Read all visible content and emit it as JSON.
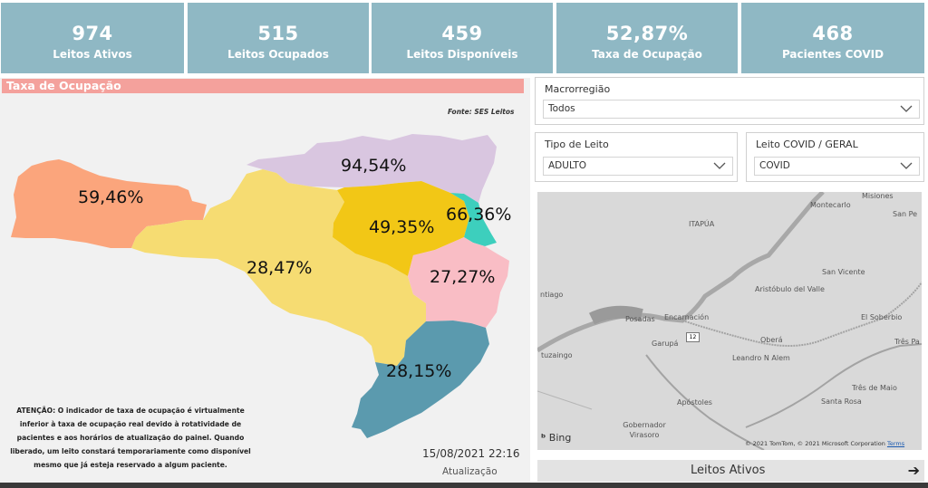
{
  "kpis": [
    {
      "value": "974",
      "label": "Leitos Ativos"
    },
    {
      "value": "515",
      "label": "Leitos Ocupados"
    },
    {
      "value": "459",
      "label": "Leitos Disponíveis"
    },
    {
      "value": "52,87%",
      "label": "Taxa de Ocupação"
    },
    {
      "value": "468",
      "label": "Pacientes COVID"
    }
  ],
  "map_panel": {
    "title": "Taxa de Ocupação",
    "source": "Fonte: SES Leitos",
    "regions": [
      {
        "pct": "59,46%",
        "color": "#fba57c"
      },
      {
        "pct": "94,54%",
        "color": "#d9c6e0"
      },
      {
        "pct": "28,47%",
        "color": "#f6dc72"
      },
      {
        "pct": "49,35%",
        "color": "#f2c716"
      },
      {
        "pct": "66,36%",
        "color": "#3dcfbd"
      },
      {
        "pct": "27,27%",
        "color": "#f9bdc5"
      },
      {
        "pct": "28,15%",
        "color": "#5b9aae"
      }
    ],
    "notice": "ATENÇÃO: O indicador de taxa de ocupação é virtualmente inferior à taxa de ocupação real devido à rotatividade de pacientes e aos horários de atualização do painel. Quando liberado, um leito constará temporariamente como disponível mesmo que já esteja reservado a algum paciente.",
    "timestamp": "15/08/2021 22:16",
    "updated_label": "Atualização"
  },
  "filters": {
    "macroregiao": {
      "label": "Macrorregião",
      "value": "Todos"
    },
    "tipo_leito": {
      "label": "Tipo de Leito",
      "value": "ADULTO"
    },
    "leito_covid": {
      "label": "Leito COVID / GERAL",
      "value": "COVID"
    }
  },
  "bing_map": {
    "labels": [
      "Misiones",
      "Montecarlo",
      "San Pe",
      "ITAPÚA",
      "San Vicente",
      "Aristóbulo del Valle",
      "ntiago",
      "Posadas",
      "Encarnación",
      "El Soberbio",
      "Garupá",
      "Oberá",
      "Três Pa",
      "Leandro N Alem",
      "tuzaingo",
      "Três de Maio",
      "Apóstoles",
      "Santa Rosa",
      "Gobernador Virasoro"
    ],
    "route_badge": "12",
    "provider": "Bing",
    "copyright": "© 2021 TomTom, © 2021 Microsoft Corporation",
    "terms": "Terms"
  },
  "leitos_button": {
    "label": "Leitos Ativos",
    "arrow": "➔"
  },
  "colors": {
    "kpi_bg": "#8fb8c4",
    "header_bg": "#f4a19c",
    "panel_bg": "#f1f1f1"
  }
}
